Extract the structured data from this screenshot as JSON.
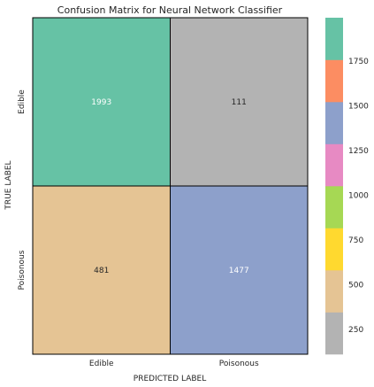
{
  "chart_data": {
    "type": "heatmap",
    "title": "Confusion Matrix for Neural Network Classifier",
    "xlabel": "PREDICTED LABEL",
    "ylabel": "TRUE LABEL",
    "x_categories": [
      "Edible",
      "Poisonous"
    ],
    "y_categories": [
      "Edible",
      "Poisonous"
    ],
    "values": [
      [
        1993,
        111
      ],
      [
        481,
        1477
      ]
    ],
    "colorbar": {
      "range": [
        111,
        1993
      ],
      "ticks": [
        250,
        500,
        750,
        1000,
        1250,
        1500,
        1750
      ],
      "tick_labels": [
        "250",
        "500",
        "750",
        "1000",
        "1250",
        "1500",
        "1750"
      ],
      "palette": [
        "#b3b3b3",
        "#e5c494",
        "#ffd92f",
        "#a6d854",
        "#e78ac3",
        "#8da0cb",
        "#fc8d62",
        "#66c2a5"
      ]
    },
    "text_colors": {
      "dark": "#262626",
      "light": "#ffffff"
    }
  }
}
